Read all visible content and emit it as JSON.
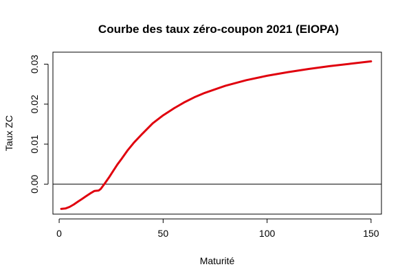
{
  "chart_data": {
    "type": "line",
    "title": "Courbe des taux zéro-coupon 2021 (EIOPA)",
    "xlabel": "Maturité",
    "ylabel": "Taux ZC",
    "xlim": [
      -3,
      155
    ],
    "ylim": [
      -0.0075,
      0.033
    ],
    "x_ticks": [
      0,
      50,
      100,
      150
    ],
    "x_tick_labels": [
      "0",
      "50",
      "100",
      "150"
    ],
    "y_ticks": [
      0.0,
      0.01,
      0.02,
      0.03
    ],
    "y_tick_labels": [
      "0.00",
      "0.01",
      "0.02",
      "0.03"
    ],
    "grid": false,
    "reference_line": {
      "axis": "y",
      "value": 0
    },
    "series": [
      {
        "color": "#e0000d",
        "x": [
          1,
          3,
          5,
          7,
          9,
          11,
          13,
          15,
          17,
          19,
          20,
          22,
          24,
          26,
          28,
          30,
          33,
          36,
          40,
          45,
          50,
          55,
          60,
          65,
          70,
          80,
          90,
          100,
          110,
          120,
          130,
          140,
          150
        ],
        "y": [
          -0.0062,
          -0.0061,
          -0.0057,
          -0.0051,
          -0.0044,
          -0.0037,
          -0.003,
          -0.0023,
          -0.0017,
          -0.0016,
          -0.0012,
          0.0002,
          0.0017,
          0.0033,
          0.0049,
          0.0063,
          0.0085,
          0.0104,
          0.0126,
          0.0152,
          0.0172,
          0.0189,
          0.0204,
          0.0217,
          0.0228,
          0.0246,
          0.026,
          0.0271,
          0.028,
          0.0288,
          0.0295,
          0.0301,
          0.0307
        ]
      }
    ]
  }
}
